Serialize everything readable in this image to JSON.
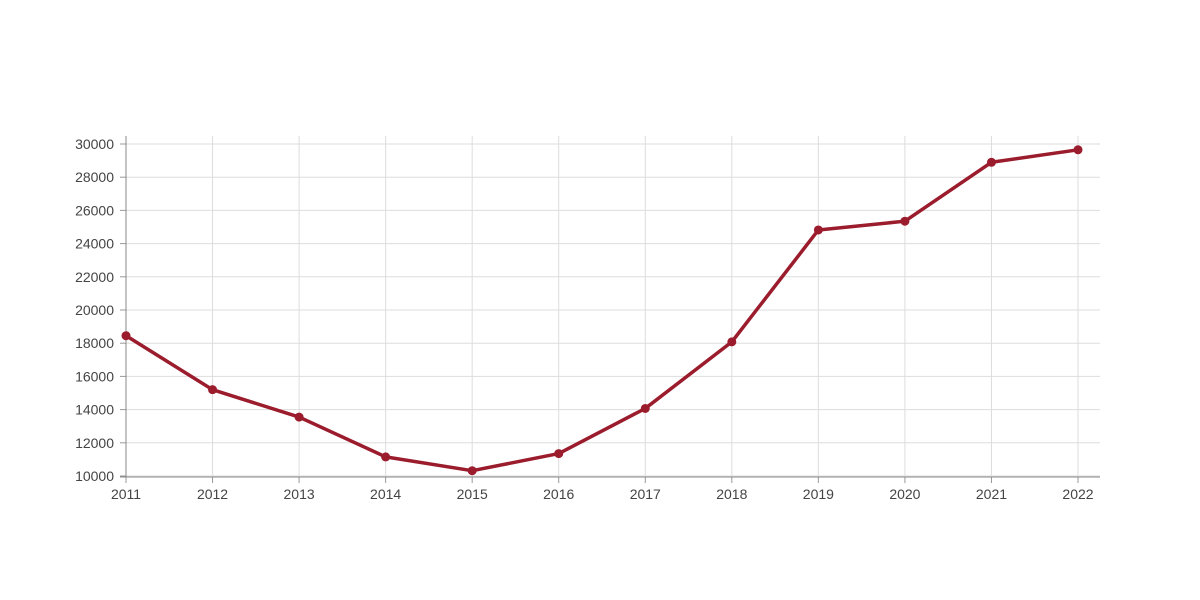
{
  "chart_data": {
    "type": "line",
    "title": "",
    "xlabel": "",
    "ylabel": "",
    "categories": [
      "2011",
      "2012",
      "2013",
      "2014",
      "2015",
      "2016",
      "2017",
      "2018",
      "2019",
      "2020",
      "2021",
      "2022"
    ],
    "series": [
      {
        "values": [
          18450,
          15200,
          13550,
          11150,
          10320,
          11350,
          14070,
          18080,
          24820,
          25350,
          28900,
          29650
        ],
        "color": "#9b1c2c"
      }
    ],
    "ylim": [
      10000,
      30000
    ],
    "yticks": [
      "10000",
      "12000",
      "14000",
      "16000",
      "18000",
      "20000",
      "22000",
      "24000",
      "26000",
      "28000",
      "30000"
    ],
    "grid": true,
    "legend": "none"
  }
}
